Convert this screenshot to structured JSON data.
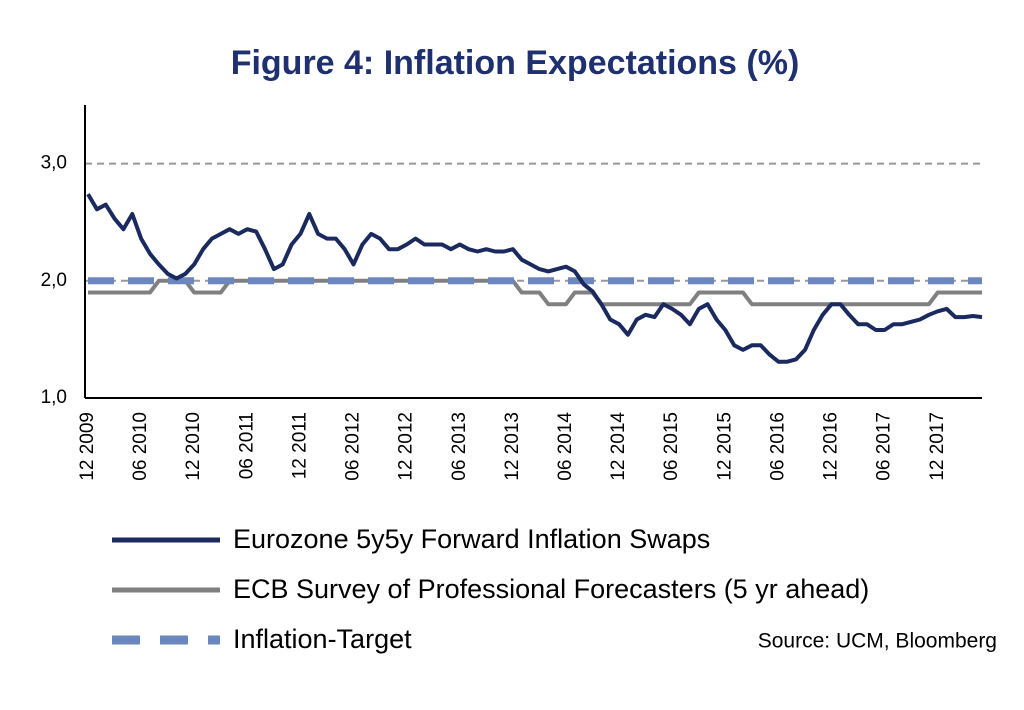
{
  "chart_data": {
    "type": "line",
    "title": "Figure 4: Inflation Expectations (%)",
    "source": "Source: UCM, Bloomberg",
    "x": [
      "12 2009",
      "01 2010",
      "02 2010",
      "03 2010",
      "04 2010",
      "05 2010",
      "06 2010",
      "07 2010",
      "08 2010",
      "09 2010",
      "10 2010",
      "11 2010",
      "12 2010",
      "01 2011",
      "02 2011",
      "03 2011",
      "04 2011",
      "05 2011",
      "06 2011",
      "07 2011",
      "08 2011",
      "09 2011",
      "10 2011",
      "11 2011",
      "12 2011",
      "01 2012",
      "02 2012",
      "03 2012",
      "04 2012",
      "05 2012",
      "06 2012",
      "07 2012",
      "08 2012",
      "09 2012",
      "10 2012",
      "11 2012",
      "12 2012",
      "01 2013",
      "02 2013",
      "03 2013",
      "04 2013",
      "05 2013",
      "06 2013",
      "07 2013",
      "08 2013",
      "09 2013",
      "10 2013",
      "11 2013",
      "12 2013",
      "01 2014",
      "02 2014",
      "03 2014",
      "04 2014",
      "05 2014",
      "06 2014",
      "07 2014",
      "08 2014",
      "09 2014",
      "10 2014",
      "11 2014",
      "12 2014",
      "01 2015",
      "02 2015",
      "03 2015",
      "04 2015",
      "05 2015",
      "06 2015",
      "07 2015",
      "08 2015",
      "09 2015",
      "10 2015",
      "11 2015",
      "12 2015",
      "01 2016",
      "02 2016",
      "03 2016",
      "04 2016",
      "05 2016",
      "06 2016",
      "07 2016",
      "08 2016",
      "09 2016",
      "10 2016",
      "11 2016",
      "12 2016",
      "01 2017",
      "02 2017",
      "03 2017",
      "04 2017",
      "05 2017",
      "06 2017",
      "07 2017",
      "08 2017",
      "09 2017",
      "10 2017",
      "11 2017",
      "12 2017",
      "01 2018",
      "02 2018",
      "03 2018",
      "04 2018",
      "05 2018"
    ],
    "xticks": [
      "12 2009",
      "06 2010",
      "12 2010",
      "06 2011",
      "12 2011",
      "06 2012",
      "12 2012",
      "06 2013",
      "12 2013",
      "06 2014",
      "12 2014",
      "06 2015",
      "12 2015",
      "06 2016",
      "12 2016",
      "06 2017",
      "12 2017"
    ],
    "ylim": [
      1,
      3.5
    ],
    "yticks": [
      {
        "value": 1,
        "label": "1,0"
      },
      {
        "value": 2,
        "label": "2,0"
      },
      {
        "value": 3,
        "label": "3,0"
      }
    ],
    "grid": true,
    "series": [
      {
        "name": "Eurozone 5y5y Forward Inflation Swaps",
        "color": "#1a2a5e",
        "dashed": false,
        "values": [
          2.74,
          2.61,
          2.65,
          2.53,
          2.44,
          2.57,
          2.36,
          2.23,
          2.14,
          2.06,
          2.02,
          2.06,
          2.14,
          2.27,
          2.36,
          2.4,
          2.44,
          2.4,
          2.44,
          2.42,
          2.27,
          2.1,
          2.14,
          2.31,
          2.4,
          2.57,
          2.4,
          2.36,
          2.36,
          2.27,
          2.14,
          2.31,
          2.4,
          2.36,
          2.27,
          2.27,
          2.31,
          2.36,
          2.31,
          2.31,
          2.31,
          2.27,
          2.31,
          2.27,
          2.25,
          2.27,
          2.25,
          2.25,
          2.27,
          2.18,
          2.14,
          2.1,
          2.08,
          2.1,
          2.12,
          2.08,
          1.97,
          1.91,
          1.8,
          1.67,
          1.63,
          1.54,
          1.67,
          1.71,
          1.69,
          1.8,
          1.76,
          1.71,
          1.63,
          1.76,
          1.8,
          1.67,
          1.58,
          1.45,
          1.41,
          1.45,
          1.45,
          1.37,
          1.31,
          1.31,
          1.33,
          1.41,
          1.58,
          1.71,
          1.8,
          1.8,
          1.71,
          1.63,
          1.63,
          1.58,
          1.58,
          1.63,
          1.63,
          1.65,
          1.67,
          1.71,
          1.74,
          1.76,
          1.69,
          1.69,
          1.7,
          1.69
        ]
      },
      {
        "name": "ECB Survey of Professional Forecasters (5 yr ahead)",
        "color": "#808080",
        "dashed": false,
        "values": [
          1.9,
          1.9,
          1.9,
          1.9,
          1.9,
          1.9,
          1.9,
          1.9,
          2.0,
          2.0,
          2.0,
          2.0,
          1.9,
          1.9,
          1.9,
          1.9,
          2.0,
          2.0,
          2.0,
          2.0,
          2.0,
          2.0,
          2.0,
          2.0,
          2.0,
          2.0,
          2.0,
          2.0,
          2.0,
          2.0,
          2.0,
          2.0,
          2.0,
          2.0,
          2.0,
          2.0,
          2.0,
          2.0,
          2.0,
          2.0,
          2.0,
          2.0,
          2.0,
          2.0,
          2.0,
          2.0,
          2.0,
          2.0,
          2.0,
          1.9,
          1.9,
          1.9,
          1.8,
          1.8,
          1.8,
          1.9,
          1.9,
          1.9,
          1.8,
          1.8,
          1.8,
          1.8,
          1.8,
          1.8,
          1.8,
          1.8,
          1.8,
          1.8,
          1.8,
          1.9,
          1.9,
          1.9,
          1.9,
          1.9,
          1.9,
          1.8,
          1.8,
          1.8,
          1.8,
          1.8,
          1.8,
          1.8,
          1.8,
          1.8,
          1.8,
          1.8,
          1.8,
          1.8,
          1.8,
          1.8,
          1.8,
          1.8,
          1.8,
          1.8,
          1.8,
          1.8,
          1.9,
          1.9,
          1.9,
          1.9,
          1.9,
          1.9
        ]
      },
      {
        "name": "Inflation-Target",
        "color": "#6c87c0",
        "dashed": true,
        "values": [
          2.0,
          2.0,
          2.0,
          2.0,
          2.0,
          2.0,
          2.0,
          2.0,
          2.0,
          2.0,
          2.0,
          2.0,
          2.0,
          2.0,
          2.0,
          2.0,
          2.0,
          2.0,
          2.0,
          2.0,
          2.0,
          2.0,
          2.0,
          2.0,
          2.0,
          2.0,
          2.0,
          2.0,
          2.0,
          2.0,
          2.0,
          2.0,
          2.0,
          2.0,
          2.0,
          2.0,
          2.0,
          2.0,
          2.0,
          2.0,
          2.0,
          2.0,
          2.0,
          2.0,
          2.0,
          2.0,
          2.0,
          2.0,
          2.0,
          2.0,
          2.0,
          2.0,
          2.0,
          2.0,
          2.0,
          2.0,
          2.0,
          2.0,
          2.0,
          2.0,
          2.0,
          2.0,
          2.0,
          2.0,
          2.0,
          2.0,
          2.0,
          2.0,
          2.0,
          2.0,
          2.0,
          2.0,
          2.0,
          2.0,
          2.0,
          2.0,
          2.0,
          2.0,
          2.0,
          2.0,
          2.0,
          2.0,
          2.0,
          2.0,
          2.0,
          2.0,
          2.0,
          2.0,
          2.0,
          2.0,
          2.0,
          2.0,
          2.0,
          2.0,
          2.0,
          2.0,
          2.0,
          2.0,
          2.0,
          2.0,
          2.0,
          2.0
        ]
      }
    ]
  }
}
